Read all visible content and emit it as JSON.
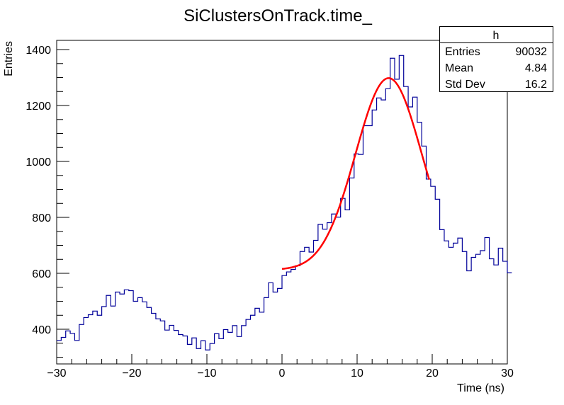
{
  "chart_data": {
    "type": "histogram",
    "title": "SiClustersOnTrack.time_",
    "xlabel": "Time (ns)",
    "ylabel": "Entries",
    "xlim": [
      -30,
      30
    ],
    "ylim": [
      276,
      1433
    ],
    "xticks": [
      -30,
      -20,
      -10,
      0,
      10,
      20,
      30
    ],
    "yticks": [
      400,
      600,
      800,
      1000,
      1200,
      1400
    ],
    "bin_width": 0.6,
    "histogram_color": "#000099",
    "fit_color": "#ff0000",
    "values": [
      360,
      371,
      394,
      385,
      360,
      417,
      442,
      452,
      465,
      450,
      481,
      521,
      483,
      533,
      526,
      541,
      538,
      500,
      513,
      498,
      478,
      457,
      437,
      430,
      397,
      414,
      396,
      381,
      376,
      346,
      369,
      331,
      359,
      326,
      349,
      384,
      366,
      399,
      389,
      413,
      374,
      413,
      435,
      450,
      475,
      461,
      513,
      566,
      533,
      546,
      592,
      605,
      614,
      627,
      678,
      693,
      676,
      718,
      775,
      758,
      781,
      812,
      801,
      868,
      827,
      941,
      1027,
      1025,
      1128,
      1128,
      1184,
      1227,
      1220,
      1260,
      1369,
      1294,
      1379,
      1268,
      1195,
      1230,
      1140,
      1055,
      937,
      911,
      865,
      756,
      716,
      693,
      708,
      726,
      678,
      609,
      657,
      668,
      681,
      728,
      652,
      630,
      690,
      643,
      602
    ],
    "fit": {
      "function": "gaus+const",
      "range": [
        0,
        19.6
      ],
      "constant": 612,
      "amplitude": 686,
      "mean": 14.2,
      "sigma": 4.4
    },
    "stats": {
      "name": "h",
      "rows": [
        {
          "label": "Entries",
          "value": "90032"
        },
        {
          "label": "Mean",
          "value": "4.84"
        },
        {
          "label": "Std Dev",
          "value": "16.2"
        }
      ]
    }
  }
}
